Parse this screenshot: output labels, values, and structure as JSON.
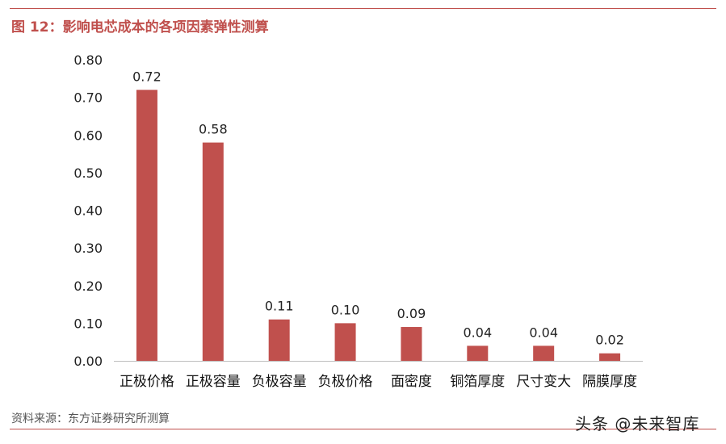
{
  "figure_title": "图 12：影响电芯成本的各项因素弹性测算",
  "source": "资料来源：东方证券研究所测算",
  "watermark": "头条 @未来智库",
  "colors": {
    "bar": "#c0504d",
    "accent": "#c0504d"
  },
  "chart_data": {
    "type": "bar",
    "categories": [
      "正极价格",
      "正极容量",
      "负极容量",
      "负极价格",
      "面密度",
      "铜箔厚度",
      "尺寸变大",
      "隔膜厚度"
    ],
    "values": [
      0.72,
      0.58,
      0.11,
      0.1,
      0.09,
      0.04,
      0.04,
      0.02
    ],
    "value_labels": [
      "0.72",
      "0.58",
      "0.11",
      "0.10",
      "0.09",
      "0.04",
      "0.04",
      "0.02"
    ],
    "yticks": [
      "0.00",
      "0.10",
      "0.20",
      "0.30",
      "0.40",
      "0.50",
      "0.60",
      "0.70",
      "0.80"
    ],
    "ylim": [
      0,
      0.8
    ],
    "grid": false,
    "legend": "none"
  }
}
